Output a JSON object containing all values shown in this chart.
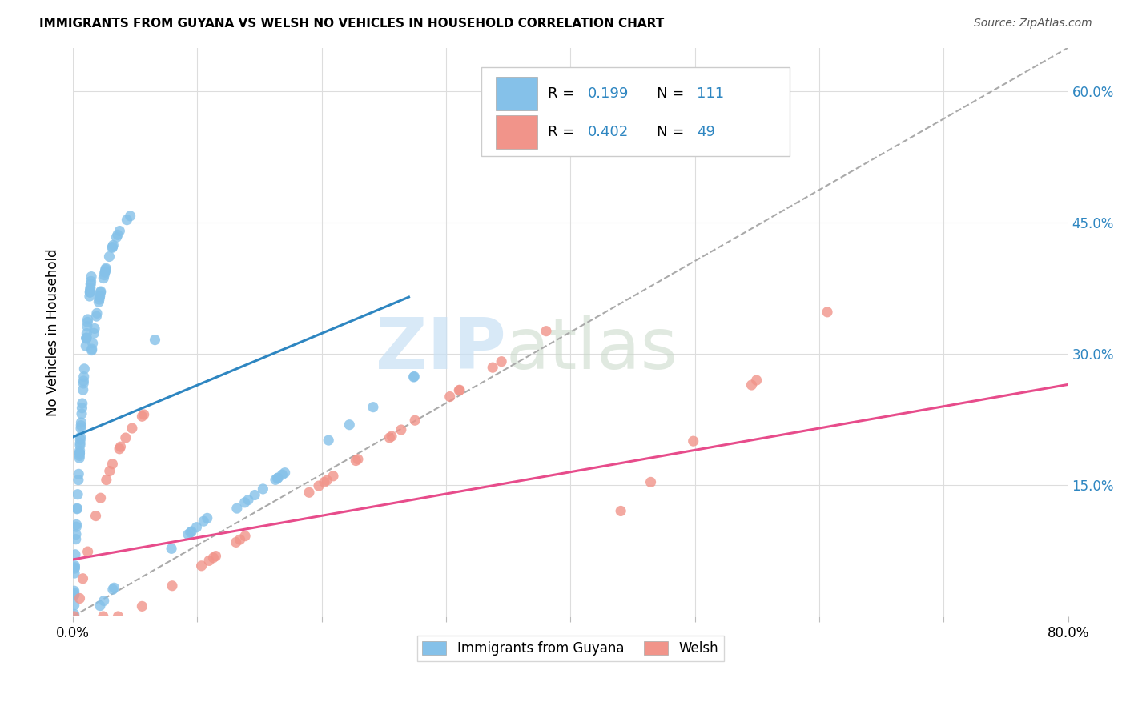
{
  "title": "IMMIGRANTS FROM GUYANA VS WELSH NO VEHICLES IN HOUSEHOLD CORRELATION CHART",
  "source": "Source: ZipAtlas.com",
  "ylabel": "No Vehicles in Household",
  "xlim": [
    0.0,
    0.8
  ],
  "ylim": [
    0.0,
    0.65
  ],
  "x_ticks": [
    0.0,
    0.1,
    0.2,
    0.3,
    0.4,
    0.5,
    0.6,
    0.7,
    0.8
  ],
  "x_tick_labels": [
    "0.0%",
    "",
    "",
    "",
    "",
    "",
    "",
    "",
    "80.0%"
  ],
  "y_ticks": [
    0.0,
    0.15,
    0.3,
    0.45,
    0.6
  ],
  "y_tick_labels_right": [
    "",
    "15.0%",
    "30.0%",
    "45.0%",
    "60.0%"
  ],
  "legend_r1": "0.199",
  "legend_n1": "111",
  "legend_r2": "0.402",
  "legend_n2": "49",
  "color_blue": "#85C1E9",
  "color_pink": "#F1948A",
  "color_blue_line": "#2E86C1",
  "color_pink_line": "#E74C8B",
  "color_dashed": "#AAAAAA",
  "watermark_zip": "ZIP",
  "watermark_atlas": "atlas",
  "background_color": "#FFFFFF",
  "grid_color": "#DDDDDD",
  "blue_line_x": [
    0.0,
    0.27
  ],
  "blue_line_y": [
    0.205,
    0.365
  ],
  "pink_line_x": [
    0.0,
    0.8
  ],
  "pink_line_y": [
    0.065,
    0.265
  ],
  "dash_line_x": [
    0.0,
    0.8
  ],
  "dash_line_y": [
    0.0,
    0.65
  ]
}
